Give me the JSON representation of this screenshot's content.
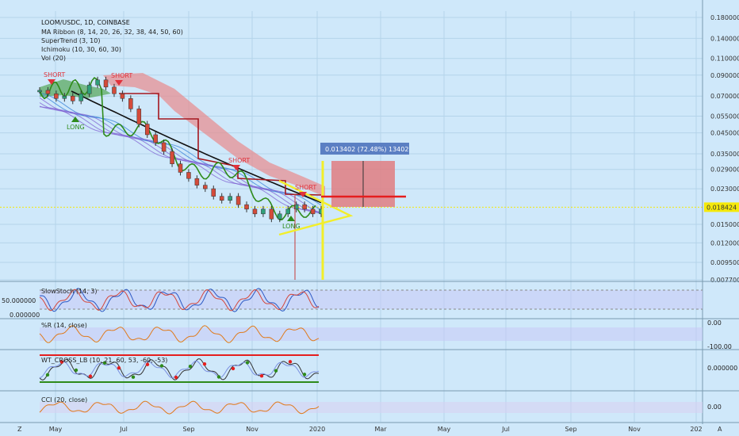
{
  "header": {
    "title": "LOOM/USDC, 1D, COINBASE",
    "indicators": [
      "MA Ribbon (8, 14, 20, 26, 32, 38, 44, 50, 60)",
      "SuperTrend (3, 10)",
      "Ichimoku (10, 30, 60, 30)",
      "Vol (20)"
    ]
  },
  "colors": {
    "background": "#cfe8fa",
    "grid": "#b4d4ea",
    "green": "#2e8b1a",
    "short": "#e0323c",
    "cloud": "#e88a8c",
    "yellow": "#f2ee2a",
    "box": "#e07c80",
    "current_price": "#f5e90a"
  },
  "chart_data": [
    {
      "type": "line",
      "panel": "price",
      "title": "LOOM/USDC, 1D, COINBASE",
      "y_scale": "log",
      "y_ticks": [
        "0.180000",
        "0.140000",
        "0.110000",
        "0.090000",
        "0.070000",
        "0.055000",
        "0.045000",
        "0.035000",
        "0.029000",
        "0.023000",
        "0.018424",
        "0.015000",
        "0.012000",
        "0.009500",
        "0.007700"
      ],
      "x_ticks": [
        "May",
        "Jul",
        "Sep",
        "Nov",
        "2020",
        "Mar",
        "May",
        "Jul",
        "Sep",
        "Nov",
        "202"
      ],
      "current_price": "0.018424",
      "measure_label": "0.013402 (72.48%) 13402",
      "annotations": [
        "SHORT",
        "SHORT",
        "LONG",
        "SHORT",
        "SHORT",
        "LONG"
      ],
      "series": [
        {
          "values": [
            0.075,
            0.072,
            0.068,
            0.07,
            0.066,
            0.072,
            0.08,
            0.085,
            0.078,
            0.072,
            0.068,
            0.06,
            0.05,
            0.044,
            0.04,
            0.036,
            0.031,
            0.028,
            0.026,
            0.024,
            0.023,
            0.021,
            0.02,
            0.021,
            0.019,
            0.018,
            0.017,
            0.018,
            0.016,
            0.017,
            0.018,
            0.019,
            0.018,
            0.017,
            0.018
          ]
        }
      ]
    },
    {
      "type": "line",
      "panel": "SlowStoch (14, 3)",
      "title": "SlowStoch (14, 3)",
      "y_ticks": [
        "50.000000",
        "0.000000"
      ]
    },
    {
      "type": "line",
      "panel": "%R (14, close)",
      "title": "%R (14, close)",
      "y_ticks": [
        "0.00",
        "-100.00"
      ]
    },
    {
      "type": "line",
      "panel": "WT_CROSS_LB (10, 21, 60, 53, -60, -53)",
      "title": "WT_CROSS_LB (10, 21, 60, 53, -60, -53)",
      "y_ticks": [
        "0.000000"
      ]
    },
    {
      "type": "line",
      "panel": "CCI (20, close)",
      "title": "CCI (20, close)",
      "y_ticks": [
        "0.00"
      ]
    }
  ],
  "footer": {
    "left_button": "Z",
    "right_button": "A"
  }
}
